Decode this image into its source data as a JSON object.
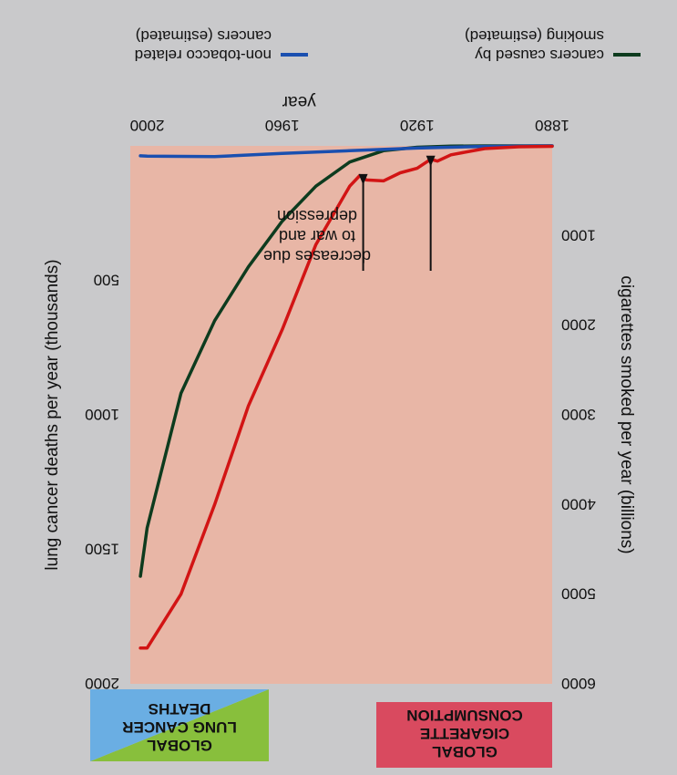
{
  "chart_data": {
    "type": "line",
    "x_axis": {
      "label": "year",
      "ticks": [
        1880,
        1920,
        1960,
        2000
      ],
      "range": [
        1880,
        2005
      ]
    },
    "y_left": {
      "label": "cigarettes smoked per year (billions)",
      "ticks": [
        1000,
        2000,
        3000,
        4000,
        5000,
        6000
      ],
      "range": [
        0,
        6000
      ]
    },
    "y_right": {
      "label": "lung cancer deaths per year (thousands)",
      "ticks": [
        500,
        1000,
        1500,
        2000
      ],
      "range": [
        0,
        2000
      ]
    },
    "series": [
      {
        "name": "cancers caused by smoking (estimated)",
        "axis": "right",
        "color": "#0d3b1e",
        "x": [
          1880,
          1900,
          1910,
          1920,
          1930,
          1940,
          1950,
          1960,
          1970,
          1980,
          1990,
          2000,
          2002
        ],
        "y": [
          0,
          0,
          1,
          5,
          18,
          60,
          150,
          280,
          450,
          650,
          920,
          1420,
          1600
        ]
      },
      {
        "name": "non-tobacco related cancers (estimated)",
        "axis": "right",
        "color": "#1a4fb0",
        "x": [
          1880,
          1900,
          1920,
          1940,
          1960,
          1980,
          2000,
          2002
        ],
        "y": [
          0,
          2,
          8,
          18,
          28,
          40,
          38,
          37
        ]
      },
      {
        "name": "global cigarette consumption",
        "axis": "left",
        "color": "#d21414",
        "x": [
          1880,
          1890,
          1900,
          1910,
          1914,
          1916,
          1920,
          1925,
          1930,
          1935,
          1937,
          1940,
          1950,
          1960,
          1970,
          1980,
          1990,
          2000,
          2002
        ],
        "y": [
          5,
          10,
          30,
          100,
          170,
          150,
          250,
          300,
          390,
          380,
          330,
          450,
          1100,
          2050,
          2900,
          4000,
          5000,
          5600,
          5600
        ]
      }
    ],
    "annotation": {
      "lines": [
        "decreases due",
        "to war and",
        "depression"
      ],
      "arrow_x": [
        1916,
        1936
      ]
    },
    "legend": {
      "placement": "top"
    }
  },
  "boxes": {
    "left": {
      "lines": [
        "GLOBAL",
        "CIGARETTE",
        "CONSUMPTION"
      ],
      "color": "#d94a5f"
    },
    "right": {
      "lines": [
        "GLOBAL",
        "LUNG CANCER",
        "DEATHS"
      ],
      "color_a": "#88bf3c",
      "color_b": "#6aaee3"
    }
  },
  "colors": {
    "plot_bg": "#e8b6a6"
  }
}
